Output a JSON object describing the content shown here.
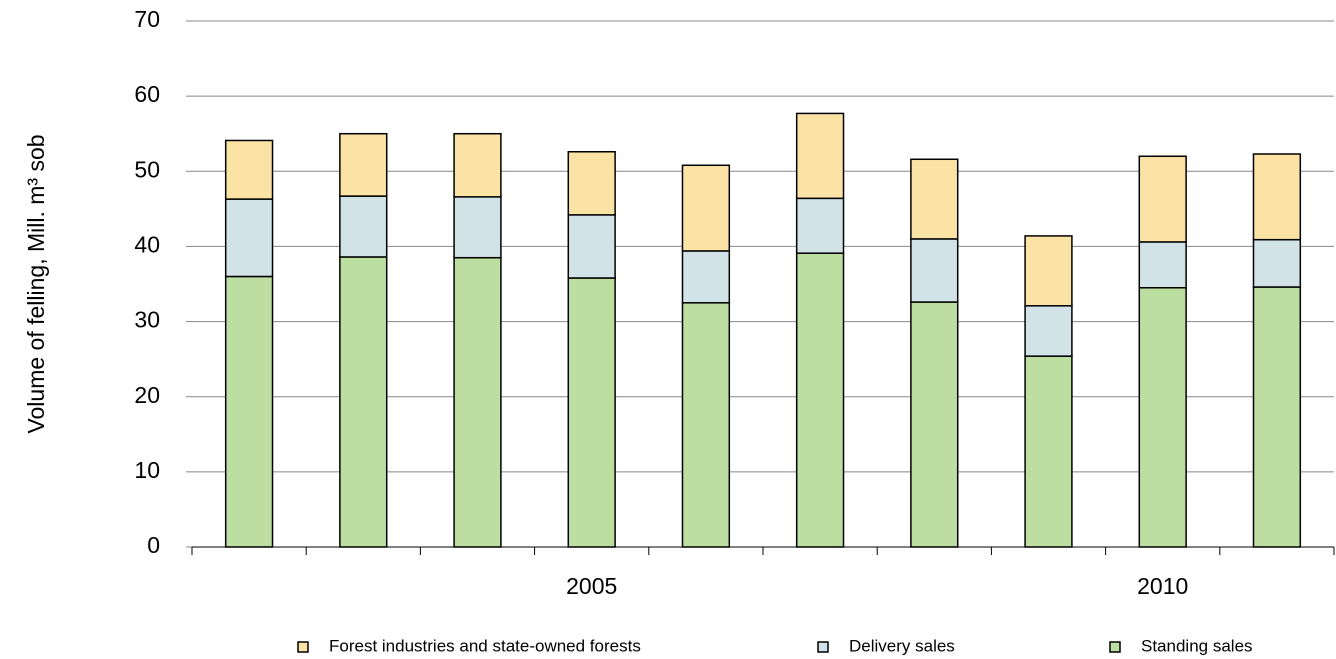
{
  "chart_data": {
    "type": "stacked_bar",
    "y_label": "Volume of felling, Mill. m³ sob",
    "categories": [
      null,
      null,
      null,
      "2005",
      null,
      null,
      null,
      null,
      "2010",
      null
    ],
    "series": [
      {
        "name": "Standing sales",
        "color": "#bcdea0",
        "values": [
          36.0,
          38.6,
          38.5,
          35.8,
          32.5,
          39.1,
          32.6,
          25.4,
          34.5,
          34.6
        ]
      },
      {
        "name": "Delivery sales",
        "color": "#d2e3e8",
        "values": [
          10.3,
          8.1,
          8.1,
          8.4,
          6.9,
          7.3,
          8.4,
          6.7,
          6.1,
          6.3
        ]
      },
      {
        "name": "Forest industries and state-owned forests",
        "color": "#fae3a4",
        "values": [
          7.8,
          8.3,
          8.4,
          8.4,
          11.4,
          11.3,
          10.6,
          9.3,
          11.4,
          11.4
        ]
      }
    ],
    "ylim": [
      0,
      70
    ],
    "yticks": [
      0,
      10,
      20,
      30,
      40,
      50,
      60,
      70
    ],
    "grid": true,
    "legend": "bottom"
  }
}
